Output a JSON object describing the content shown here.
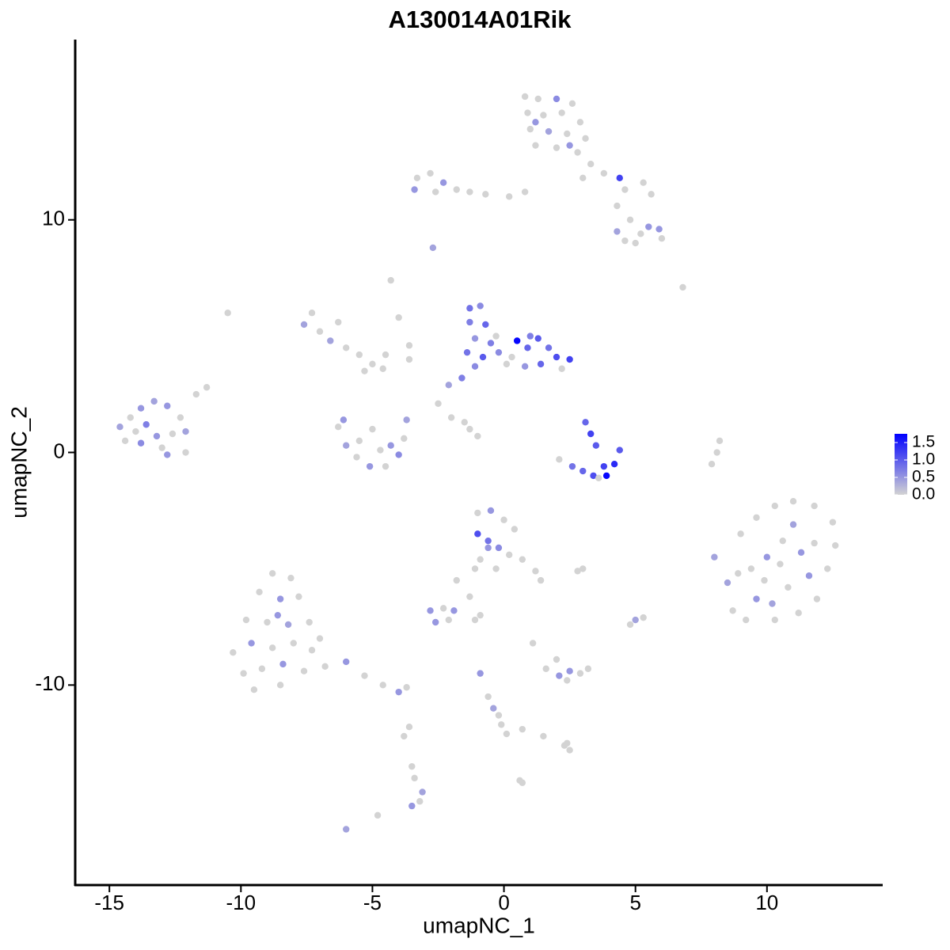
{
  "chart_data": {
    "type": "scatter",
    "title": "A130014A01Rik",
    "x_label": "umapNC_1",
    "y_label": "umapNC_2",
    "xlim": [
      -16.3,
      14.4
    ],
    "ylim": [
      -18.6,
      17.75
    ],
    "xticks": [
      -15,
      -10,
      -5,
      0,
      5,
      10
    ],
    "yticks": [
      -10,
      0,
      10
    ],
    "grid": false,
    "legend": "right",
    "color_scale": {
      "low": "#d3d3d3",
      "high": "#0000ff",
      "lim": [
        0,
        1.75
      ],
      "ticks": [
        {
          "value": 0,
          "label": "0.0"
        },
        {
          "value": 0.5,
          "label": "0.5"
        },
        {
          "value": 1,
          "label": "1.0"
        },
        {
          "value": 1.5,
          "label": "1.5"
        }
      ]
    },
    "x": [
      0.8,
      1.3,
      2.0,
      2.6,
      0.9,
      1.5,
      2.2,
      2.9,
      1.0,
      1.7,
      2.4,
      3.1,
      1.2,
      2.0,
      2.8,
      1.2,
      2.5,
      3.3,
      3.8,
      4.4,
      4.6,
      5.3,
      5.6,
      3.0,
      -3.3,
      -2.8,
      -2.3,
      -1.8,
      -1.3,
      -0.7,
      0.2,
      0.8,
      -3.4,
      -2.6,
      4.3,
      4.8,
      5.2,
      5.5,
      5.9,
      6.0,
      4.6,
      5.0,
      4.3,
      -2.7,
      -4.3,
      -10.5,
      6.8,
      -4.0,
      -3.6,
      -1.3,
      -0.9,
      -1.3,
      -0.7,
      -1.1,
      -0.5,
      -1.4,
      -0.8,
      -0.2,
      0.3,
      0.5,
      0.9,
      1.3,
      1.7,
      2.0,
      2.5,
      1.4,
      0.8,
      -1.1,
      -1.6,
      -2.1,
      2.2,
      -0.3,
      0.1,
      1.0,
      -7.3,
      -7.6,
      -7.0,
      -6.6,
      -6.0,
      -5.5,
      -5.0,
      -4.6,
      -5.3,
      -6.3,
      -4.5,
      -3.6,
      -6.3,
      -6.0,
      -5.6,
      -5.1,
      -4.5,
      -4.0,
      -3.8,
      -3.7,
      -5.5,
      -4.7,
      -6.1,
      -4.3,
      -5.0,
      -2.0,
      -1.3,
      -1.0,
      -1.5,
      -2.5,
      -14.6,
      -14.2,
      -13.8,
      -13.3,
      -12.8,
      -12.3,
      -14.4,
      -13.8,
      -13.2,
      -12.6,
      -13.6,
      -12.1,
      -12.8,
      -12.1,
      -11.7,
      -11.3,
      -13.0,
      -14.0,
      3.1,
      3.3,
      3.5,
      2.1,
      2.6,
      3.0,
      3.4,
      3.9,
      4.2,
      4.4,
      3.8,
      3.6,
      8.0,
      8.5,
      8.7,
      9.2,
      9.0,
      9.6,
      10.3,
      11.0,
      11.8,
      12.5,
      12.6,
      12.3,
      11.9,
      11.2,
      10.3,
      9.6,
      9.4,
      10.0,
      10.6,
      11.3,
      11.6,
      10.8,
      10.2,
      9.9,
      11.0,
      11.8,
      8.9,
      10.5,
      7.9,
      8.2,
      8.1,
      -1.0,
      -0.5,
      0,
      0.4,
      -1.0,
      -0.6,
      -0.2,
      0.2,
      -0.9,
      -0.3,
      0.7,
      1.2,
      1.4,
      -1.1,
      -0.6,
      3.0,
      2.8,
      -8.8,
      -8.1,
      -9.3,
      -8.5,
      -7.8,
      -9.8,
      -9.0,
      -8.2,
      -7.4,
      -10.3,
      -9.6,
      -8.8,
      -8.0,
      -7.3,
      -9.9,
      -9.2,
      -8.4,
      -7.6,
      -9.5,
      -8.5,
      -6.8,
      -6.0,
      -5.3,
      -4.6,
      -4.0,
      -3.7,
      -7.0,
      -8.6,
      -2.8,
      -2.3,
      -1.9,
      -2.1,
      -2.6,
      -1.8,
      -1.3,
      -0.9,
      -1.1,
      1.1,
      5.0,
      4.8,
      5.3,
      1.6,
      2.1,
      2.5,
      2.9,
      3.2,
      2.0,
      2.4,
      -0.9,
      -0.6,
      -0.4,
      -0.1,
      0.1,
      -0.2,
      0.7,
      1.5,
      2.3,
      2.5,
      2.4,
      -3.6,
      -3.8,
      -3.5,
      -3.4,
      -3.1,
      -3.2,
      -3.5,
      -4.8,
      -6.0,
      0.6,
      0.7
    ],
    "y": [
      15.3,
      15.2,
      15.2,
      15.0,
      14.6,
      14.5,
      14.6,
      14.2,
      13.9,
      13.8,
      13.7,
      13.5,
      13.2,
      13.1,
      12.9,
      14.2,
      13.2,
      12.4,
      12.0,
      11.8,
      11.3,
      11.6,
      11.1,
      11.8,
      11.8,
      12.0,
      11.6,
      11.3,
      11.2,
      11.1,
      11.0,
      11.2,
      11.3,
      11.2,
      10.6,
      10.0,
      9.4,
      9.7,
      9.6,
      9.2,
      9.1,
      9.0,
      9.5,
      8.8,
      7.4,
      6.0,
      7.1,
      5.8,
      4.6,
      6.2,
      6.3,
      5.6,
      5.5,
      4.9,
      4.7,
      4.3,
      4.1,
      4.3,
      4.1,
      4.8,
      4.5,
      4.9,
      4.5,
      4.1,
      4.0,
      3.8,
      3.7,
      3.7,
      3.2,
      2.9,
      3.6,
      5.0,
      3.8,
      5.0,
      6.0,
      5.5,
      5.2,
      4.8,
      4.5,
      4.2,
      3.8,
      3.6,
      3.5,
      5.6,
      4.2,
      4.0,
      1.1,
      0.3,
      -0.2,
      -0.6,
      -0.6,
      -0.1,
      0.6,
      1.4,
      0.5,
      0.1,
      1.4,
      0.3,
      1.0,
      1.5,
      1.0,
      0.7,
      1.3,
      2.1,
      1.1,
      1.5,
      1.9,
      2.2,
      2.0,
      1.5,
      0.5,
      0.4,
      0.7,
      0.8,
      1.2,
      0.9,
      -0.1,
      0,
      2.5,
      2.8,
      0.2,
      0.9,
      1.3,
      0.8,
      0.3,
      -0.3,
      -0.6,
      -0.8,
      -1.0,
      -1.0,
      -0.5,
      0.1,
      -0.6,
      -1.1,
      -4.5,
      -5.6,
      -6.8,
      -7.2,
      -3.5,
      -2.8,
      -2.3,
      -2.1,
      -2.3,
      -3.0,
      -4.0,
      -5.0,
      -6.3,
      -6.9,
      -7.2,
      -6.3,
      -5.0,
      -4.5,
      -3.8,
      -4.3,
      -5.3,
      -5.8,
      -6.5,
      -5.5,
      -3.1,
      -3.9,
      -5.2,
      -4.8,
      -0.5,
      0.5,
      0.0,
      -2.6,
      -2.5,
      -2.9,
      -3.3,
      -3.5,
      -3.8,
      -4.1,
      -4.4,
      -4.6,
      -5.0,
      -4.6,
      -5.1,
      -5.5,
      -5.0,
      -4.1,
      -5.0,
      -5.1,
      -5.2,
      -5.4,
      -6.0,
      -6.3,
      -6.2,
      -7.2,
      -7.3,
      -7.4,
      -7.3,
      -8.6,
      -8.2,
      -8.4,
      -8.2,
      -8.5,
      -9.5,
      -9.3,
      -9.1,
      -9.4,
      -10.2,
      -10.0,
      -9.2,
      -9.0,
      -9.6,
      -10.0,
      -10.3,
      -10.1,
      -8.0,
      -7.0,
      -6.8,
      -6.7,
      -6.8,
      -7.2,
      -7.3,
      -5.5,
      -6.2,
      -7.0,
      -7.2,
      -8.2,
      -7.2,
      -7.4,
      -7.1,
      -9.3,
      -9.6,
      -9.4,
      -9.5,
      -9.3,
      -8.9,
      -9.8,
      -9.5,
      -10.5,
      -11.0,
      -11.7,
      -12.1,
      -11.3,
      -11.9,
      -12.2,
      -12.6,
      -12.8,
      -12.5,
      -11.8,
      -12.2,
      -13.5,
      -14.0,
      -14.6,
      -15.0,
      -15.2,
      -15.6,
      -16.2,
      -14.1,
      -14.2
    ],
    "values": [
      0,
      0,
      0.6,
      0,
      0,
      0,
      0,
      0,
      0,
      0.4,
      0,
      0,
      0,
      0,
      0,
      0.5,
      0.5,
      0,
      0,
      1.2,
      0,
      0,
      0,
      0,
      0,
      0,
      0.5,
      0,
      0,
      0,
      0,
      0,
      0.5,
      0,
      0,
      0,
      0,
      0.5,
      0.5,
      0,
      0,
      0,
      0.4,
      0.4,
      0,
      0,
      0,
      0,
      0,
      0.8,
      0.6,
      0.7,
      0.9,
      0.5,
      0.7,
      0.8,
      1.0,
      0.6,
      0,
      1.7,
      0.9,
      1.0,
      0.8,
      1.1,
      1.2,
      0.9,
      0.5,
      0.6,
      0.7,
      0.4,
      0,
      0,
      0,
      0.7,
      0,
      0.4,
      0,
      0.4,
      0,
      0,
      0,
      0,
      0,
      0,
      0,
      0,
      0,
      0.4,
      0,
      0.5,
      0,
      0.6,
      0,
      0.4,
      0,
      0,
      0.5,
      0.5,
      0,
      0,
      0,
      0,
      0,
      0,
      0.4,
      0,
      0.5,
      0.4,
      0.5,
      0,
      0,
      0.6,
      0.5,
      0,
      0.7,
      0.4,
      0.5,
      0,
      0,
      0,
      0,
      0,
      0.9,
      1.2,
      1.0,
      0,
      0.8,
      0.9,
      1.1,
      1.7,
      1.4,
      1.0,
      1.2,
      0,
      0.4,
      0.4,
      0,
      0,
      0,
      0,
      0,
      0,
      0,
      0,
      0,
      0,
      0,
      0,
      0,
      0.5,
      0,
      0.5,
      0,
      0.5,
      0.5,
      0,
      0.4,
      0,
      0.4,
      0,
      0,
      0,
      0,
      0,
      0,
      0,
      0.5,
      0,
      0,
      1.1,
      0.8,
      0.6,
      0,
      0,
      0,
      0,
      0,
      0,
      0,
      0.5,
      0,
      0,
      0,
      0,
      0,
      0.5,
      0,
      0,
      0,
      0.4,
      0,
      0,
      0.5,
      0,
      0,
      0,
      0,
      0,
      0.5,
      0,
      0,
      0,
      0,
      0.5,
      0,
      0,
      0.5,
      0,
      0,
      0.5,
      0.5,
      0,
      0.5,
      0,
      0.5,
      0,
      0,
      0,
      0,
      0,
      0.4,
      0,
      0,
      0,
      0.5,
      0.5,
      0,
      0,
      0,
      0,
      0.5,
      0,
      0.4,
      0,
      0,
      0,
      0,
      0,
      0,
      0,
      0,
      0,
      0,
      0,
      0,
      0.4,
      0,
      0.5,
      0,
      0.4,
      0,
      0
    ]
  }
}
